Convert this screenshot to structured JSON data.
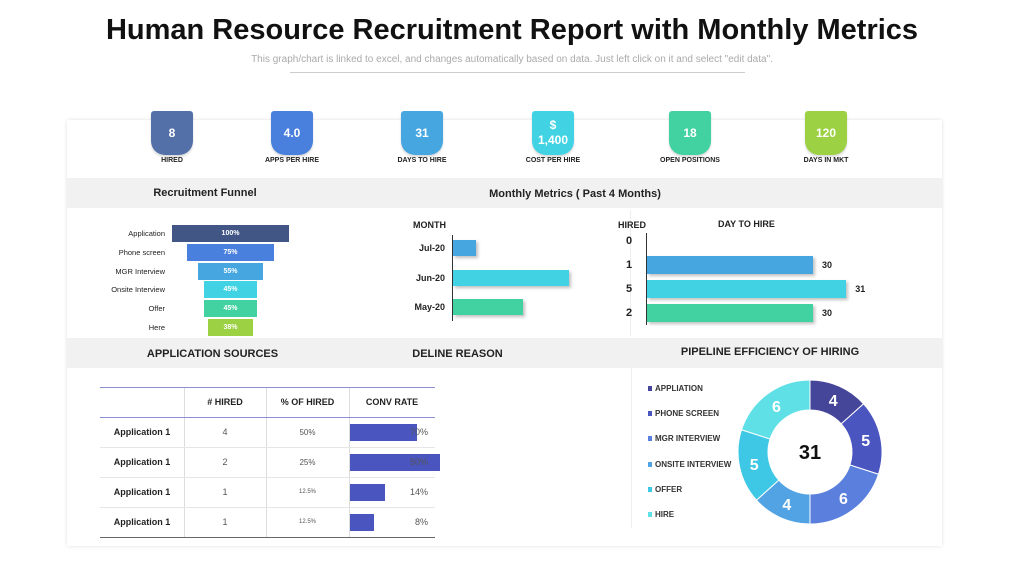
{
  "title": "Human Resource Recruitment Report with Monthly Metrics",
  "subtitle": "This graph/chart is linked to excel, and changes automatically based on data. Just left click on it and select \"edit data\".",
  "kpis": [
    {
      "value": "8",
      "label": "HIRED",
      "color": "#5470a8"
    },
    {
      "value": "4.0",
      "label": "APPS PER HIRE",
      "color": "#4a80dd"
    },
    {
      "value": "31",
      "label": "DAYS TO HIRE",
      "color": "#45a6e0"
    },
    {
      "value": "$\n1,400",
      "value_a": "$",
      "value_b": "1,400",
      "label": "COST PER HIRE",
      "color": "#41d3e3"
    },
    {
      "value": "18",
      "label": "OPEN POSITIONS",
      "color": "#42d1a0"
    },
    {
      "value": "120",
      "label": "DAYS IN MKT",
      "color": "#9bd143"
    }
  ],
  "sections": {
    "funnel": "Recruitment Funnel",
    "monthly": "Monthly Metrics ( Past 4 Months)",
    "sources": "APPLICATION SOURCES",
    "decline": "DELINE REASON",
    "pipeline": "PIPELINE EFFICIENCY OF HIRING"
  },
  "chart_data": [
    {
      "type": "bar",
      "name": "funnel",
      "categories": [
        "Application",
        "Phone screen",
        "MGR Interview",
        "Onsite Interview",
        "Offer",
        "Here"
      ],
      "values": [
        100,
        75,
        55,
        45,
        45,
        38
      ],
      "labels": [
        "100%",
        "75%",
        "55%",
        "45%",
        "45%",
        "38%"
      ],
      "colors": [
        "#415684",
        "#4a80dd",
        "#45a6e0",
        "#41d3e3",
        "#42d1a0",
        "#9bd143"
      ]
    },
    {
      "type": "bar",
      "xlabel": "",
      "ylabel": "MONTH",
      "categories": [
        "Jul-20",
        "Jun-20",
        "May-20"
      ],
      "values": [
        20,
        100,
        60
      ],
      "colors": [
        "#45a6e0",
        "#41d3e3",
        "#42d1a0"
      ]
    },
    {
      "type": "bar",
      "ylabel": "HIRED",
      "title": "DAY TO HIRE",
      "categories": [
        "0",
        "1",
        "5",
        "2"
      ],
      "values": [
        null,
        30,
        31,
        30
      ],
      "value_labels": [
        "",
        "30",
        "31",
        "30"
      ],
      "colors": [
        "#45a6e0",
        "#41d3e3",
        "#42d1a0"
      ]
    },
    {
      "type": "pie",
      "center_label": "31",
      "legend": [
        "APPLIATION",
        "PHONE SCREEN",
        "MGR INTERVIEW",
        "ONSITE INTERVIEW",
        "OFFER",
        "HIRE"
      ],
      "legend_placement": "left",
      "values": [
        4,
        5,
        6,
        4,
        5,
        6
      ],
      "colors": [
        "#45469a",
        "#4a55c0",
        "#5a7fdc",
        "#52a3e4",
        "#3ec8e6",
        "#5fe0e6"
      ]
    }
  ],
  "table": {
    "headers": [
      "",
      "# HIRED",
      "% OF HIRED",
      "CONV RATE"
    ],
    "rows": [
      {
        "source": "Application 1",
        "hired": "4",
        "pct": "50%",
        "conv": "70%",
        "conv_value": 70
      },
      {
        "source": "Application 1",
        "hired": "2",
        "pct": "25%",
        "conv": "50%",
        "conv_value": 50
      },
      {
        "source": "Application 1",
        "hired": "1",
        "pct": "12.5%",
        "conv": "14%",
        "conv_value": 14
      },
      {
        "source": "Application 1",
        "hired": "1",
        "pct": "12.5%",
        "conv": "8%",
        "conv_value": 8
      }
    ],
    "bar_color": "#4a55c0"
  }
}
